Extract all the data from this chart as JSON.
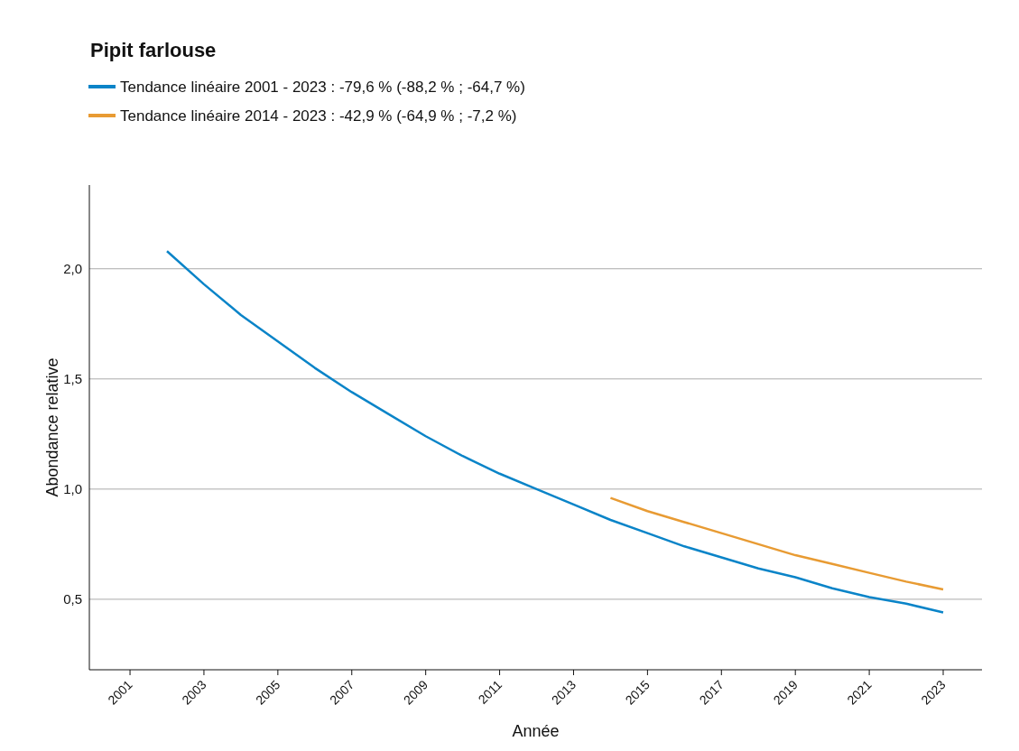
{
  "chart_data": {
    "type": "line",
    "title": "Pipit farlouse",
    "xlabel": "Année",
    "ylabel": "Abondance relative",
    "xlim": [
      1999.9,
      2024.05
    ],
    "xticks": [
      2001,
      2003,
      2005,
      2007,
      2009,
      2011,
      2013,
      2015,
      2017,
      2019,
      2021,
      2023
    ],
    "ylim": [
      0.18,
      2.38
    ],
    "yticks": [
      {
        "value": 0.5,
        "label": "0,5"
      },
      {
        "value": 1,
        "label": "1,0"
      },
      {
        "value": 1.5,
        "label": "1,5"
      },
      {
        "value": 2,
        "label": "2,0"
      }
    ],
    "grid": "y",
    "legend": "top left",
    "line_style": "solid",
    "marker": "none",
    "series": [
      {
        "name": "Tendance linéaire 2001 - 2023 : -79,6 % (-88,2 % ; -64,7 %)",
        "color": "#0a84c8",
        "x": [
          2002,
          2003,
          2004,
          2005,
          2006,
          2007,
          2008,
          2009,
          2010,
          2011,
          2012,
          2013,
          2014,
          2015,
          2016,
          2017,
          2018,
          2019,
          2020,
          2021,
          2022,
          2023
        ],
        "values": [
          2.08,
          1.93,
          1.79,
          1.67,
          1.55,
          1.44,
          1.34,
          1.24,
          1.15,
          1.07,
          1.0,
          0.93,
          0.86,
          0.8,
          0.74,
          0.69,
          0.64,
          0.6,
          0.55,
          0.51,
          0.48,
          0.44
        ]
      },
      {
        "name": "Tendance linéaire 2014 - 2023 : -42,9 % (-64,9 % ; -7,2 %)",
        "color": "#e89b33",
        "x": [
          2014,
          2015,
          2016,
          2017,
          2018,
          2019,
          2020,
          2021,
          2022,
          2023
        ],
        "values": [
          0.96,
          0.9,
          0.85,
          0.8,
          0.75,
          0.7,
          0.66,
          0.62,
          0.58,
          0.545
        ]
      }
    ]
  }
}
